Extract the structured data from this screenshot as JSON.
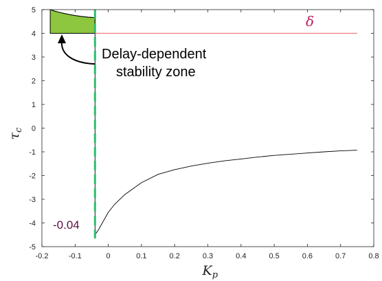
{
  "chart_data": {
    "type": "line",
    "xlabel": "K_p",
    "ylabel": "τ_c",
    "xlim": [
      -0.2,
      0.8
    ],
    "ylim": [
      -5,
      5
    ],
    "xticks": [
      "-0.2",
      "-0.1",
      "0",
      "0.1",
      "0.2",
      "0.3",
      "0.4",
      "0.5",
      "0.6",
      "0.7",
      "0.8"
    ],
    "yticks": [
      "5",
      "4",
      "3",
      "2",
      "1",
      "0",
      "-1",
      "-2",
      "-3",
      "-4",
      "-5"
    ],
    "grid": false,
    "series": [
      {
        "color": "#000000",
        "points": [
          [
            -0.175,
            5.0
          ],
          [
            -0.16,
            4.93
          ],
          [
            -0.14,
            4.86
          ],
          [
            -0.12,
            4.8
          ],
          [
            -0.1,
            4.75
          ],
          [
            -0.08,
            4.71
          ],
          [
            -0.06,
            4.68
          ],
          [
            -0.04,
            4.66
          ],
          [
            -0.04,
            -4.5
          ],
          [
            -0.03,
            -4.3
          ],
          [
            -0.01,
            -3.8
          ],
          [
            0.0,
            -3.55
          ],
          [
            0.02,
            -3.2
          ],
          [
            0.05,
            -2.8
          ],
          [
            0.1,
            -2.3
          ],
          [
            0.15,
            -1.95
          ],
          [
            0.2,
            -1.75
          ],
          [
            0.25,
            -1.6
          ],
          [
            0.3,
            -1.48
          ],
          [
            0.35,
            -1.38
          ],
          [
            0.4,
            -1.3
          ],
          [
            0.45,
            -1.22
          ],
          [
            0.5,
            -1.15
          ],
          [
            0.55,
            -1.1
          ],
          [
            0.6,
            -1.05
          ],
          [
            0.65,
            -1.0
          ],
          [
            0.7,
            -0.96
          ],
          [
            0.75,
            -0.93
          ]
        ]
      },
      {
        "name": "δ",
        "color": "#f07b7b",
        "points": [
          [
            -0.04,
            4.0
          ],
          [
            0.75,
            4.0
          ]
        ]
      }
    ],
    "shaded_region": {
      "label": "Delay-dependent stability zone",
      "color": "#8dc63f",
      "upper": [
        [
          -0.175,
          5.0
        ],
        [
          -0.16,
          4.93
        ],
        [
          -0.14,
          4.86
        ],
        [
          -0.12,
          4.8
        ],
        [
          -0.1,
          4.75
        ],
        [
          -0.08,
          4.71
        ],
        [
          -0.06,
          4.68
        ],
        [
          -0.04,
          4.66
        ]
      ],
      "lower": 4.0
    },
    "vertical_line": {
      "x": -0.04,
      "label": "-0.04",
      "color": "#2dbd6e",
      "style": "dashed"
    },
    "annotations": {
      "delta_label": "δ",
      "delta_color": "#c2185b",
      "zone_label_line1": "Delay-dependent",
      "zone_label_line2": "stability zone",
      "vline_label": "-0.04",
      "vline_label_color": "#5a1040"
    }
  }
}
